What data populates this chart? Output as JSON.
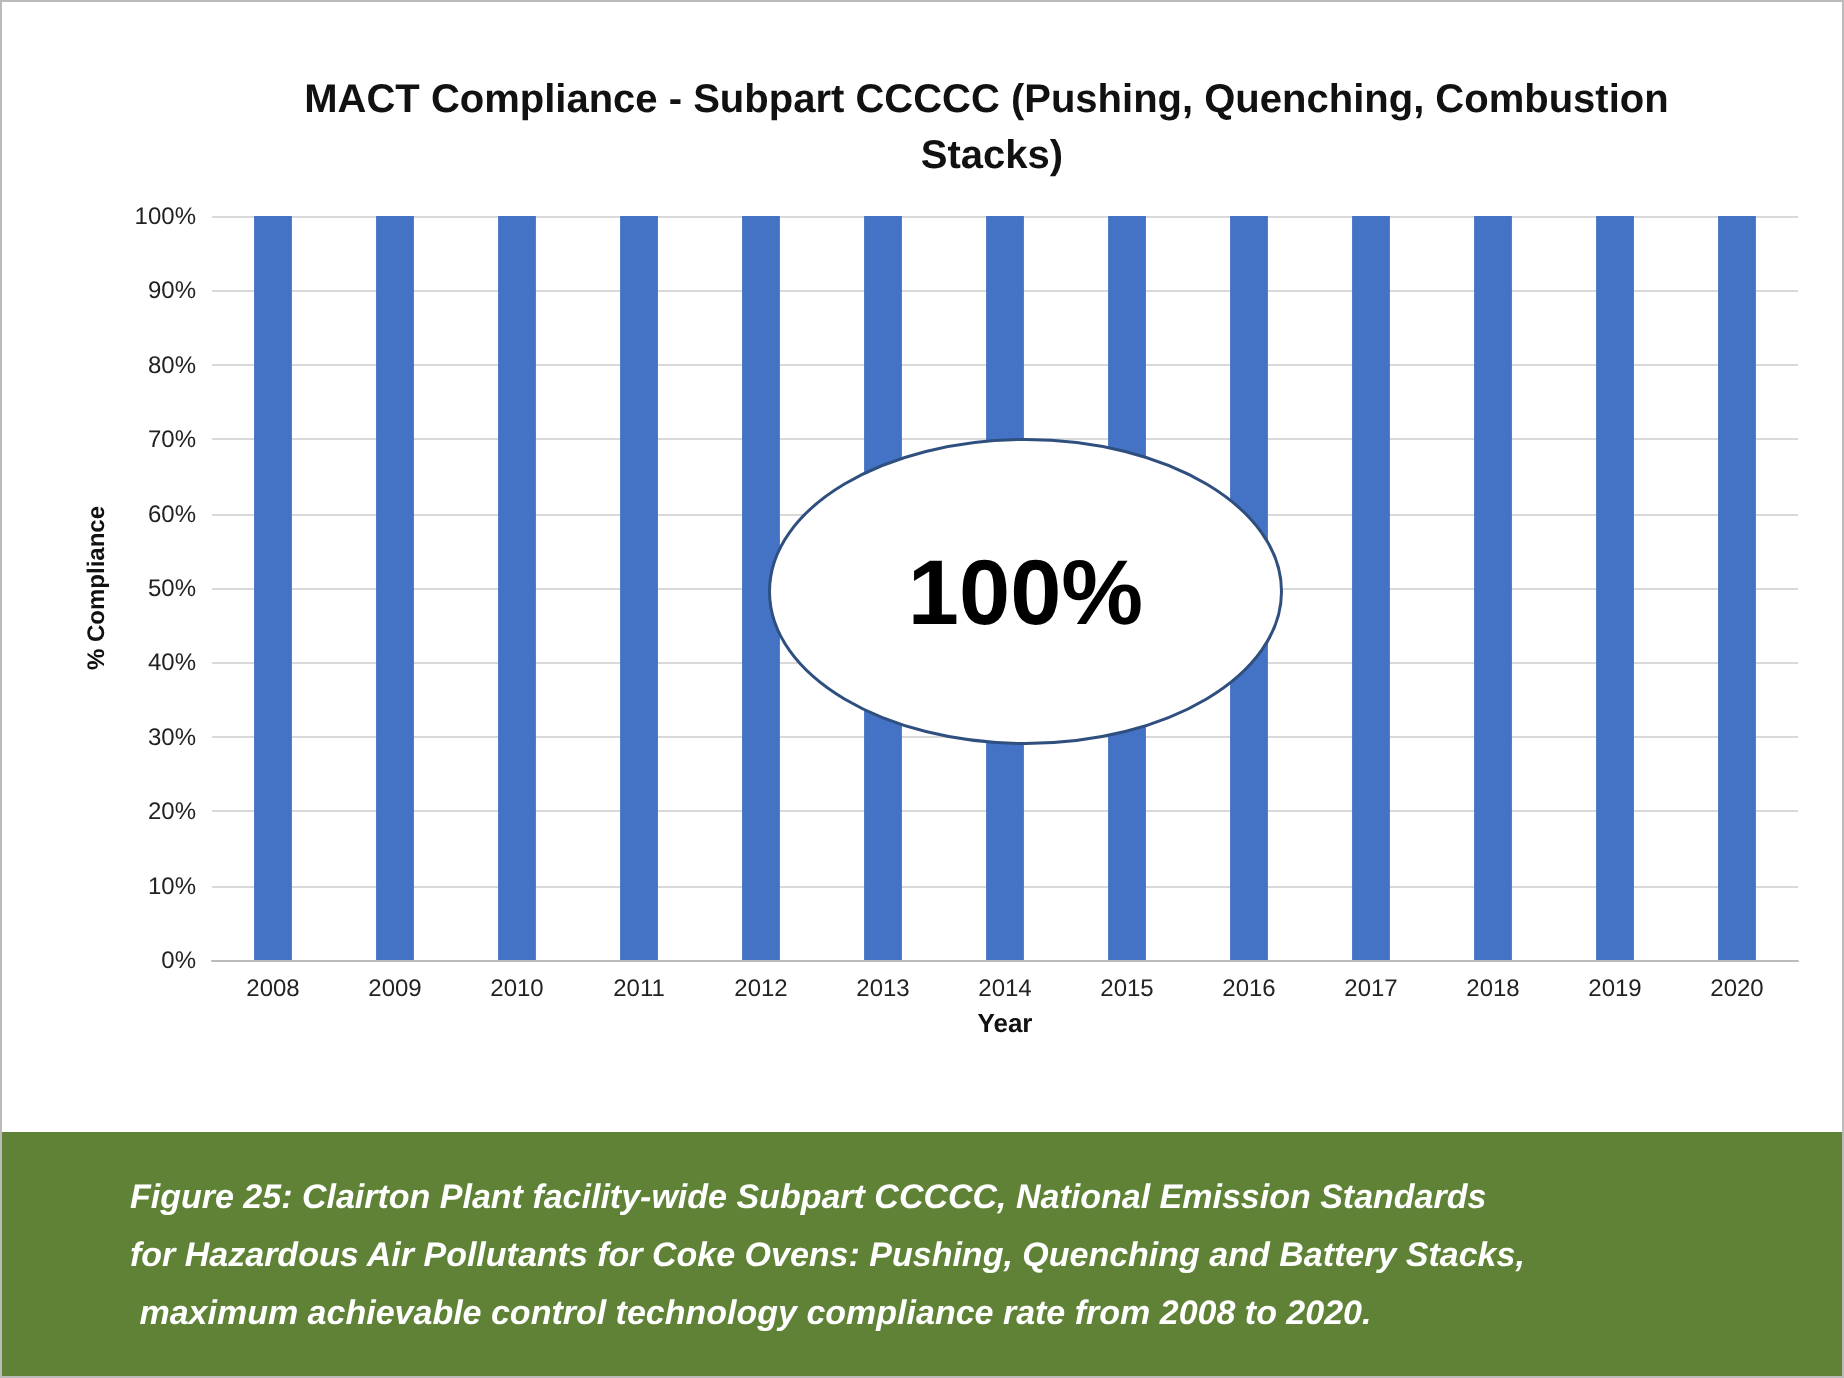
{
  "chart_data": {
    "type": "bar",
    "title": "MACT Compliance - Subpart CCCCC (Pushing, Quenching, Combustion Stacks)",
    "xlabel": "Year",
    "ylabel": "% Compliance",
    "categories": [
      "2008",
      "2009",
      "2010",
      "2011",
      "2012",
      "2013",
      "2014",
      "2015",
      "2016",
      "2017",
      "2018",
      "2019",
      "2020"
    ],
    "values": [
      100,
      100,
      100,
      100,
      100,
      100,
      100,
      100,
      100,
      100,
      100,
      100,
      100
    ],
    "color": "#4472c4",
    "ylim": [
      0,
      100
    ],
    "yticks": [
      {
        "value": 0,
        "label": "0%"
      },
      {
        "value": 10,
        "label": "10%"
      },
      {
        "value": 20,
        "label": "20%"
      },
      {
        "value": 30,
        "label": "30%"
      },
      {
        "value": 40,
        "label": "40%"
      },
      {
        "value": 50,
        "label": "50%"
      },
      {
        "value": 60,
        "label": "60%"
      },
      {
        "value": 70,
        "label": "70%"
      },
      {
        "value": 80,
        "label": "80%"
      },
      {
        "value": 90,
        "label": "90%"
      },
      {
        "value": 100,
        "label": "100%"
      }
    ],
    "grid": "y",
    "annotations": [
      "100%",
      "Figure 25: Clairton Plant facility-wide Subpart CCCCC, National Emission Standards for Hazardous Air Pollutants for Coke Ovens: Pushing, Quenching and Battery Stacks, maximum achievable control technology compliance rate from 2008 to 2020."
    ]
  }
}
